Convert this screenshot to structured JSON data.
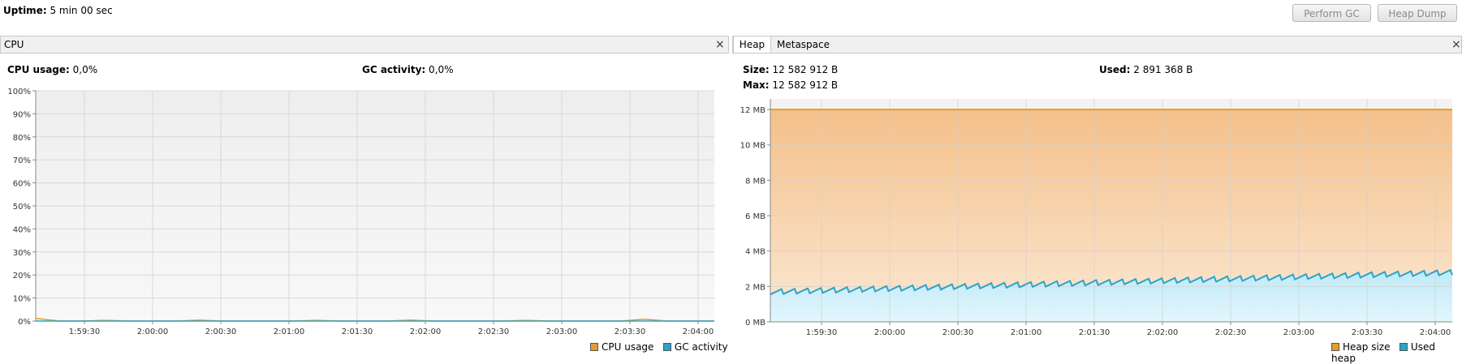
{
  "header": {
    "uptime_label": "Uptime:",
    "uptime_value": "5 min 00 sec",
    "perform_gc": "Perform GC",
    "heap_dump": "Heap Dump"
  },
  "cpu_panel": {
    "title": "CPU",
    "close": "×",
    "cpu_usage_label": "CPU usage:",
    "cpu_usage_value": "0,0%",
    "gc_activity_label": "GC activity:",
    "gc_activity_value": "0,0%"
  },
  "memory_panel": {
    "tabs": [
      "Heap",
      "Metaspace"
    ],
    "close": "×",
    "size_label": "Size:",
    "size_value": "12 582 912 B",
    "max_label": "Max:",
    "max_value": "12 582 912 B",
    "used_label": "Used:",
    "used_value": "2 891 368 B"
  },
  "chart_data": [
    {
      "type": "line",
      "x_ticks": [
        "1:59:30",
        "2:00:00",
        "2:00:30",
        "2:01:00",
        "2:01:30",
        "2:02:00",
        "2:02:30",
        "2:03:00",
        "2:03:30",
        "2:04:00"
      ],
      "y_ticks": [
        "0%",
        "10%",
        "20%",
        "30%",
        "40%",
        "50%",
        "60%",
        "70%",
        "80%",
        "90%",
        "100%"
      ],
      "ylim": [
        0,
        100
      ],
      "grid": true,
      "legend_position": "bottom-right",
      "series": [
        {
          "name": "CPU usage",
          "color": "#e69a2e",
          "values": [
            1.2,
            0,
            0,
            0.3,
            0,
            0,
            0,
            0.4,
            0,
            0,
            0,
            0,
            0.3,
            0,
            0,
            0,
            0.4,
            0,
            0,
            0,
            0,
            0.3,
            0,
            0,
            0,
            0,
            0.8,
            0,
            0,
            0
          ]
        },
        {
          "name": "GC activity",
          "color": "#2aa4c9",
          "values": [
            0,
            0,
            0,
            0,
            0,
            0,
            0,
            0,
            0,
            0,
            0,
            0,
            0,
            0,
            0,
            0,
            0,
            0,
            0,
            0,
            0,
            0,
            0,
            0,
            0,
            0,
            0,
            0,
            0,
            0
          ]
        }
      ]
    },
    {
      "type": "area",
      "x_ticks": [
        "1:59:30",
        "2:00:00",
        "2:00:30",
        "2:01:00",
        "2:01:30",
        "2:02:00",
        "2:02:30",
        "2:03:00",
        "2:03:30",
        "2:04:00"
      ],
      "y_ticks": [
        "0 MB",
        "2 MB",
        "4 MB",
        "6 MB",
        "8 MB",
        "10 MB",
        "12 MB"
      ],
      "ylim": [
        0,
        12.6
      ],
      "grid": true,
      "legend_position": "bottom-right",
      "series": [
        {
          "name": "Heap size",
          "color": "#e69a2e",
          "value_mb": 12.0
        },
        {
          "name": "Used heap",
          "color": "#2aa4c9",
          "start_mb": 1.7,
          "end_mb": 2.8,
          "teeth": 52,
          "amplitude_mb": 0.3
        }
      ]
    }
  ]
}
